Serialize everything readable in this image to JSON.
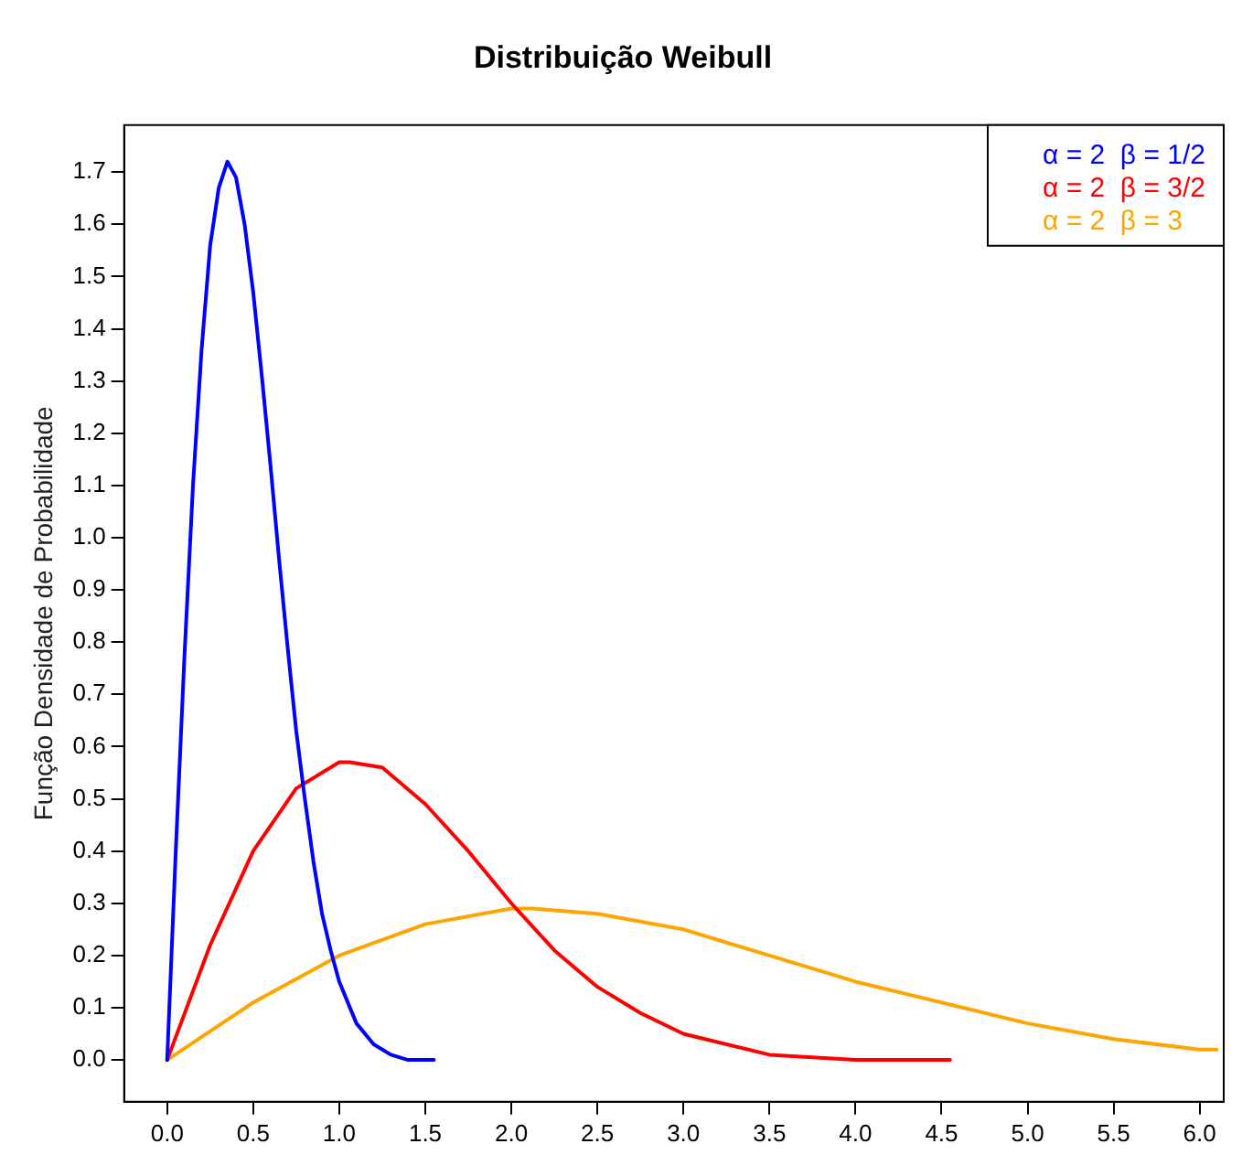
{
  "chart_data": {
    "type": "line",
    "title": "Distribuição Weibull",
    "ylabel": "Função Densidade de Probabilidade",
    "xlim": [
      -0.25,
      6.14
    ],
    "ylim": [
      -0.08,
      1.79
    ],
    "xticks": [
      {
        "value": 0,
        "label": "0.0"
      },
      {
        "value": 0.5,
        "label": "0.5"
      },
      {
        "value": 1,
        "label": "1.0"
      },
      {
        "value": 1.5,
        "label": "1.5"
      },
      {
        "value": 2,
        "label": "2.0"
      },
      {
        "value": 2.5,
        "label": "2.5"
      },
      {
        "value": 3,
        "label": "3.0"
      },
      {
        "value": 3.5,
        "label": "3.5"
      },
      {
        "value": 4,
        "label": "4.0"
      },
      {
        "value": 4.5,
        "label": "4.5"
      },
      {
        "value": 5,
        "label": "5.0"
      },
      {
        "value": 5.5,
        "label": "5.5"
      },
      {
        "value": 6,
        "label": "6.0"
      }
    ],
    "yticks": [
      {
        "value": 0,
        "label": "0.0"
      },
      {
        "value": 0.1,
        "label": "0.1"
      },
      {
        "value": 0.2,
        "label": "0.2"
      },
      {
        "value": 0.3,
        "label": "0.3"
      },
      {
        "value": 0.4,
        "label": "0.4"
      },
      {
        "value": 0.5,
        "label": "0.5"
      },
      {
        "value": 0.6,
        "label": "0.6"
      },
      {
        "value": 0.7,
        "label": "0.7"
      },
      {
        "value": 0.8,
        "label": "0.8"
      },
      {
        "value": 0.9,
        "label": "0.9"
      },
      {
        "value": 1,
        "label": "1.0"
      },
      {
        "value": 1.1,
        "label": "1.1"
      },
      {
        "value": 1.2,
        "label": "1.2"
      },
      {
        "value": 1.3,
        "label": "1.3"
      },
      {
        "value": 1.4,
        "label": "1.4"
      },
      {
        "value": 1.5,
        "label": "1.5"
      },
      {
        "value": 1.6,
        "label": "1.6"
      },
      {
        "value": 1.7,
        "label": "1.7"
      }
    ],
    "grid": false,
    "legend": "top right",
    "marker": "none",
    "line_style": "solid",
    "series": [
      {
        "name": "α = 2  β = 1/2",
        "color": "#0000ff",
        "x": [
          0,
          0.05,
          0.1,
          0.15,
          0.2,
          0.25,
          0.3,
          0.35,
          0.4,
          0.45,
          0.5,
          0.55,
          0.6,
          0.65,
          0.7,
          0.75,
          0.8,
          0.85,
          0.9,
          0.95,
          1.0,
          1.1,
          1.2,
          1.3,
          1.4,
          1.55
        ],
        "values": [
          0,
          0.4,
          0.77,
          1.1,
          1.36,
          1.56,
          1.67,
          1.72,
          1.69,
          1.6,
          1.47,
          1.31,
          1.14,
          0.96,
          0.79,
          0.63,
          0.5,
          0.38,
          0.28,
          0.21,
          0.15,
          0.07,
          0.03,
          0.01,
          0,
          0
        ]
      },
      {
        "name": "α = 2  β = 3/2",
        "color": "#ff0000",
        "x": [
          0,
          0.25,
          0.5,
          0.75,
          1.0,
          1.06,
          1.25,
          1.5,
          1.75,
          2.0,
          2.25,
          2.5,
          2.75,
          3.0,
          3.5,
          4.0,
          4.55
        ],
        "values": [
          0,
          0.22,
          0.4,
          0.52,
          0.57,
          0.57,
          0.56,
          0.49,
          0.4,
          0.3,
          0.21,
          0.14,
          0.09,
          0.05,
          0.01,
          0,
          0
        ]
      },
      {
        "name": "α = 2  β = 3",
        "color": "#ffa500",
        "x": [
          0,
          0.5,
          1.0,
          1.5,
          2.0,
          2.12,
          2.5,
          3.0,
          3.5,
          4.0,
          4.5,
          5.0,
          5.5,
          6.0,
          6.1
        ],
        "values": [
          0,
          0.11,
          0.2,
          0.26,
          0.29,
          0.29,
          0.28,
          0.25,
          0.2,
          0.15,
          0.11,
          0.07,
          0.04,
          0.02,
          0.02
        ]
      }
    ]
  }
}
